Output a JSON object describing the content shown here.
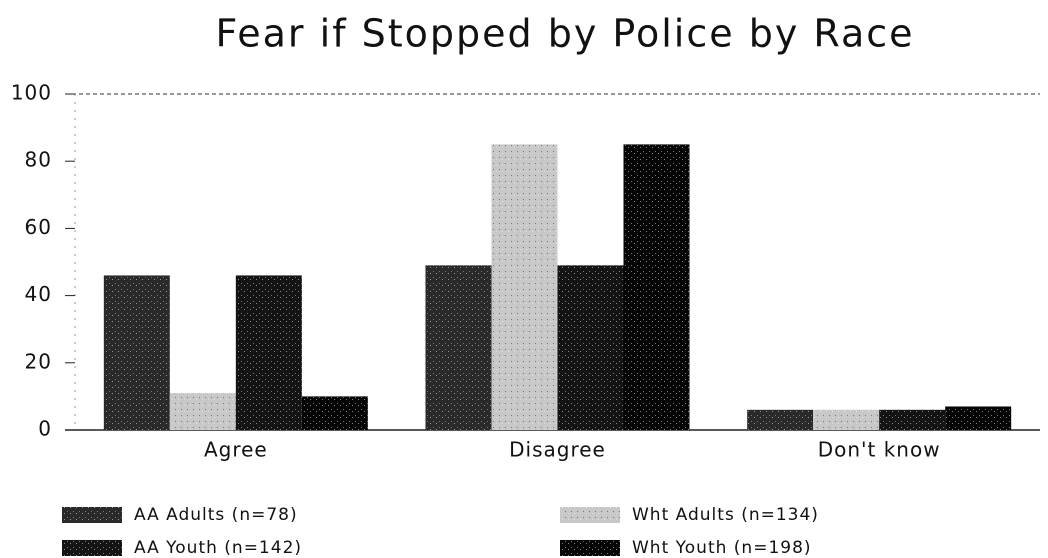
{
  "chart_data": {
    "type": "bar",
    "title": "Fear if Stopped by Police by Race",
    "categories": [
      "Agree",
      "Disagree",
      "Don't know"
    ],
    "series": [
      {
        "name": "AA Adults (n=78)",
        "color": "#2a2a2a",
        "values": [
          46,
          49,
          6
        ]
      },
      {
        "name": "Wht Adults (n=134)",
        "color": "#c8c8c8",
        "values": [
          11,
          85,
          6
        ]
      },
      {
        "name": "AA Youth (n=142)",
        "color": "#141414",
        "values": [
          46,
          49,
          6
        ]
      },
      {
        "name": "Wht Youth (n=198)",
        "color": "#050505",
        "values": [
          10,
          85,
          7
        ]
      }
    ],
    "ylim": [
      0,
      100
    ],
    "yticks": [
      0,
      20,
      40,
      60,
      80,
      100
    ]
  }
}
